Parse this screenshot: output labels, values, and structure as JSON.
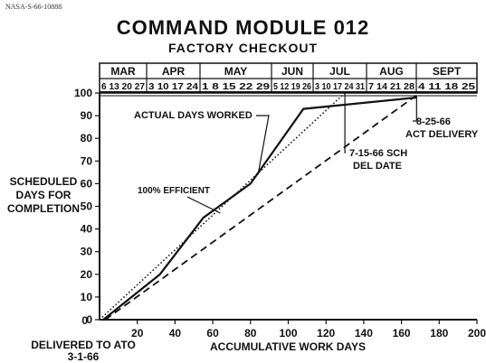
{
  "doc_code": "NASA-S-66-10888",
  "chart_data": {
    "type": "line",
    "title": "COMMAND MODULE 012",
    "subtitle": "FACTORY CHECKOUT",
    "xlabel": "ACCUMULATIVE WORK DAYS",
    "ylabel": [
      "SCHEDULED",
      "DAYS FOR",
      "COMPLETION"
    ],
    "xlim": [
      0,
      200
    ],
    "ylim": [
      0,
      100
    ],
    "x_ticks": [
      20,
      40,
      60,
      80,
      100,
      120,
      140,
      160,
      180,
      200
    ],
    "y_ticks": [
      0,
      10,
      20,
      30,
      40,
      50,
      60,
      70,
      80,
      90,
      100
    ],
    "months": [
      {
        "name": "MAR",
        "dates": "6 13 20 27"
      },
      {
        "name": "APR",
        "dates": "3 10 17 24"
      },
      {
        "name": "MAY",
        "dates": "1 8 15 22 29"
      },
      {
        "name": "JUN",
        "dates": "5 12 19 26"
      },
      {
        "name": "JUL",
        "dates": "3 10 17 24 31"
      },
      {
        "name": "AUG",
        "dates": "7 14 21 28"
      },
      {
        "name": "SEPT",
        "dates": "4 11 18 25"
      }
    ],
    "series": [
      {
        "name": "ACTUAL DAYS WORKED",
        "style": "solid",
        "x": [
          2,
          32,
          55,
          80,
          108,
          168
        ],
        "y": [
          0,
          20,
          45,
          60,
          93,
          98
        ]
      },
      {
        "name": "100% EFFICIENT",
        "style": "dotted",
        "x": [
          0,
          130
        ],
        "y": [
          0,
          100
        ]
      },
      {
        "name": "",
        "style": "dashed",
        "x": [
          3,
          168
        ],
        "y": [
          0,
          99
        ]
      }
    ],
    "annotations": {
      "actual": "ACTUAL DAYS WORKED",
      "efficient": "100% EFFICIENT",
      "act_delivery_1": "8-25-66",
      "act_delivery_2": "ACT DELIVERY",
      "sch_del_1": "7-15-66 SCH",
      "sch_del_2": "DEL DATE",
      "delivered_1": "DELIVERED TO ATO",
      "delivered_2": "3-1-66"
    }
  }
}
